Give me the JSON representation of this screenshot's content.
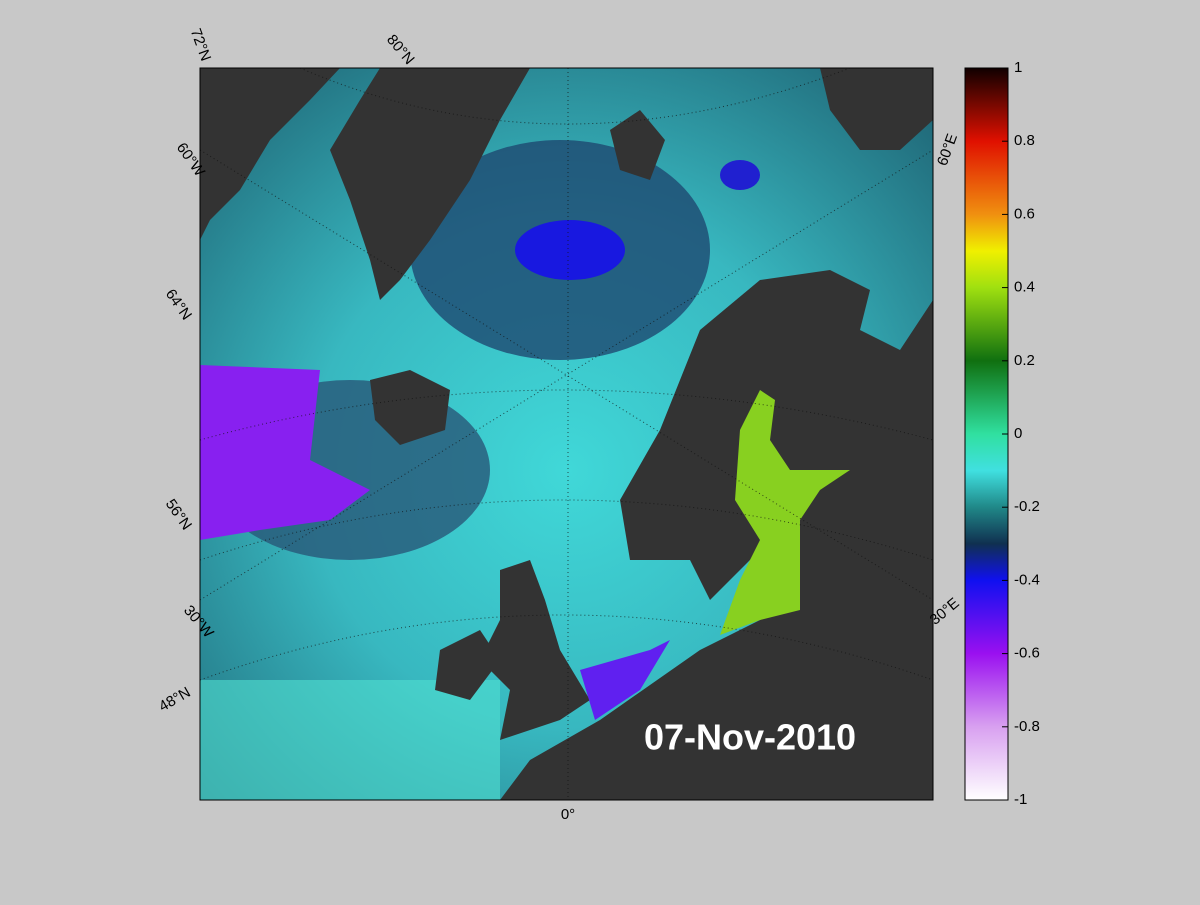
{
  "map": {
    "date": "07-Nov-2010",
    "graticule_labels": [
      "72°N",
      "80°N",
      "60°W",
      "64°N",
      "56°N",
      "30°W",
      "48°N",
      "0°",
      "60°E",
      "30°E"
    ]
  },
  "colorbar": {
    "lim": [
      -1,
      1
    ],
    "ticks": [
      -1,
      -0.8,
      -0.6,
      -0.4,
      -0.2,
      0,
      0.2,
      0.4,
      0.6,
      0.8,
      1
    ]
  }
}
